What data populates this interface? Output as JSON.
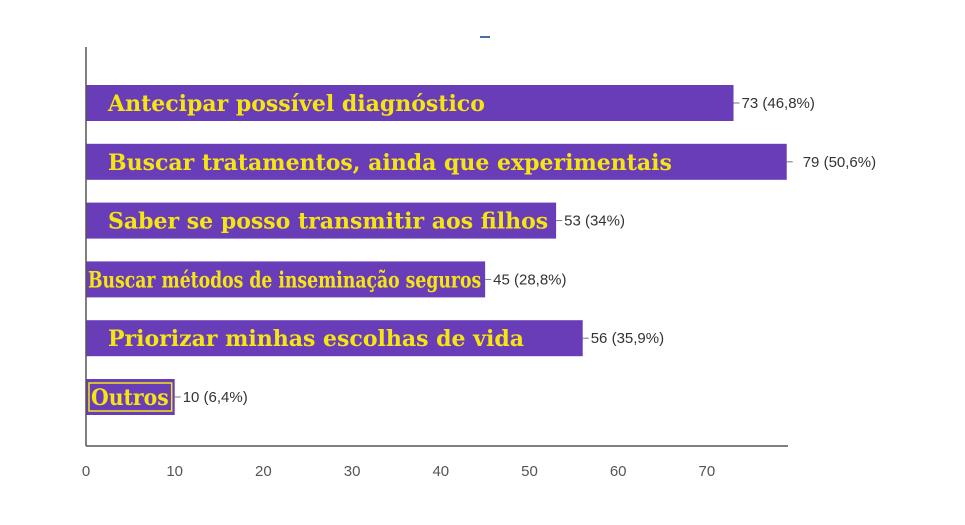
{
  "chart_data": {
    "type": "bar",
    "orientation": "horizontal",
    "title": "",
    "xlabel": "",
    "ylabel": "",
    "categories": [
      "Antecipar possível diagnóstico",
      "Buscar tratamentos, ainda que experimentais",
      "Saber se posso transmitir aos filhos",
      "Buscar métodos de inseminação seguros",
      "Priorizar minhas escolhas de vida",
      "Outros"
    ],
    "values": [
      73,
      79,
      53,
      45,
      56,
      10
    ],
    "value_labels": [
      "73 (46,8%)",
      "79 (50,6%)",
      "53 (34%)",
      "45 (28,8%)",
      "56 (35,9%)",
      "10 (6,4%)"
    ],
    "xlim": [
      0,
      79
    ],
    "x_ticks": [
      0,
      10,
      20,
      30,
      40,
      50,
      60,
      70
    ],
    "grid": false,
    "legend": "none",
    "colors": {
      "bar": "#6a3db8",
      "category_text": "#f5e612",
      "value_text": "#333333",
      "axis": "#555555",
      "tick_text": "#555555"
    }
  }
}
